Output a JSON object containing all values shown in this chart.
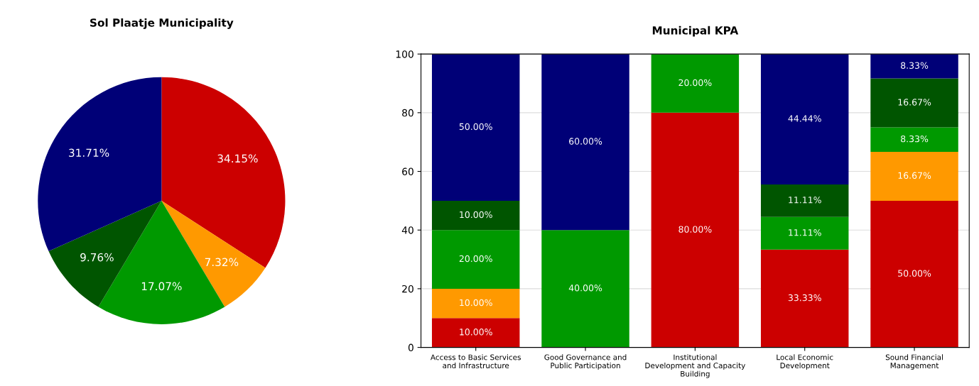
{
  "chart_data": [
    {
      "type": "pie",
      "title": "Sol Plaatje Municipality",
      "categories": [
        null,
        null,
        null,
        null,
        null
      ],
      "values": [
        34.15,
        7.32,
        17.07,
        9.76,
        31.71
      ],
      "colors": [
        "#cc0000",
        "#ff9900",
        "#009900",
        "#005500",
        "#000077"
      ],
      "value_labels": [
        "34.15%",
        "7.32%",
        "17.07%",
        "9.76%",
        "31.71%"
      ]
    },
    {
      "type": "bar",
      "title": "Municipal KPA",
      "stacked": true,
      "categories": [
        "Access to Basic Services and Infrastructure",
        "Good Governance and Public Participation",
        "Institutional Development and Capacity Building",
        "Local Economic Development",
        "Sound Financial Management"
      ],
      "ylim": [
        0,
        100
      ],
      "yticks": [
        0,
        20,
        40,
        60,
        80,
        100
      ],
      "grid": "y",
      "series": [
        {
          "color": "#cc0000",
          "values": [
            10,
            0,
            80,
            33.33,
            50
          ],
          "value_labels": [
            "10.00%",
            null,
            "80.00%",
            "33.33%",
            "50.00%"
          ]
        },
        {
          "color": "#ff9900",
          "values": [
            10,
            0,
            0,
            0,
            16.67
          ],
          "value_labels": [
            "10.00%",
            null,
            null,
            null,
            "16.67%"
          ]
        },
        {
          "color": "#009900",
          "values": [
            20,
            40,
            20,
            11.11,
            8.33
          ],
          "value_labels": [
            "20.00%",
            "40.00%",
            "20.00%",
            "11.11%",
            "8.33%"
          ]
        },
        {
          "color": "#005500",
          "values": [
            10,
            0,
            0,
            11.11,
            16.67
          ],
          "value_labels": [
            "10.00%",
            null,
            null,
            "11.11%",
            "16.67%"
          ]
        },
        {
          "color": "#000077",
          "values": [
            50,
            60,
            0,
            44.44,
            8.33
          ],
          "value_labels": [
            "50.00%",
            "60.00%",
            null,
            "44.44%",
            "8.33%"
          ]
        }
      ]
    }
  ]
}
